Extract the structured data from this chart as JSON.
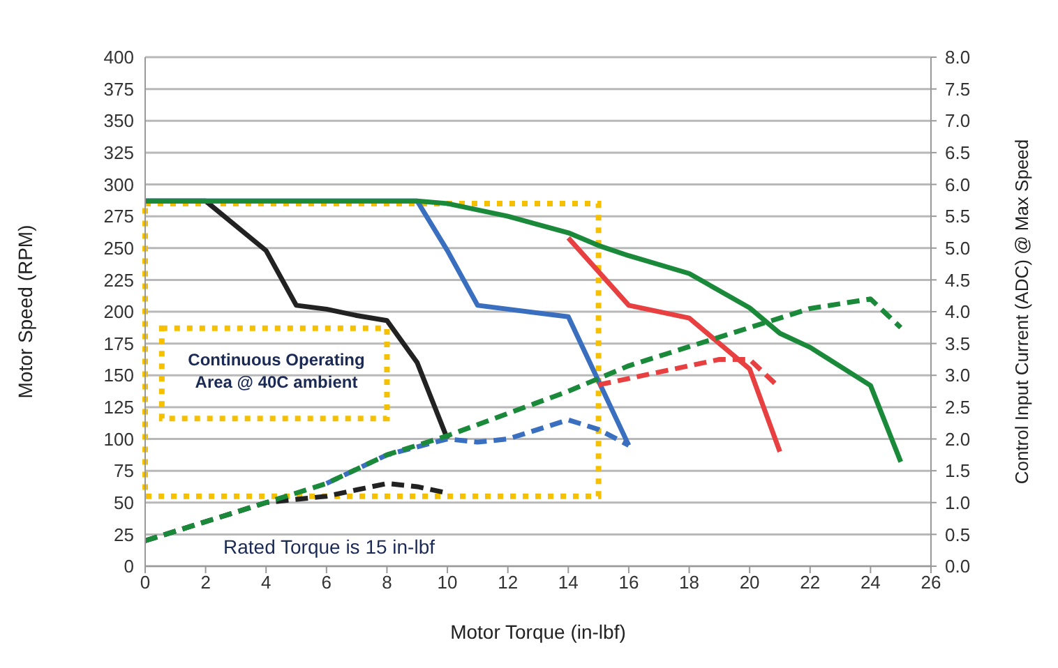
{
  "chart_data": {
    "type": "line",
    "xlabel": "Motor Torque (in-lbf)",
    "ylabel": "Motor Speed (RPM)",
    "y2label": "Control Input Current (ADC) @ Max Speed",
    "xlim": [
      0,
      26
    ],
    "xticks": [
      0,
      2,
      4,
      6,
      8,
      10,
      12,
      14,
      16,
      18,
      20,
      22,
      24,
      26
    ],
    "ylim": [
      0,
      400
    ],
    "yticks": [
      0,
      25,
      50,
      75,
      100,
      125,
      150,
      175,
      200,
      225,
      250,
      275,
      300,
      325,
      350,
      375,
      400
    ],
    "y2lim": [
      0,
      8
    ],
    "y2ticks": [
      {
        "value": 0,
        "label": "0.0"
      },
      0.5,
      {
        "value": 1,
        "label": "1.0"
      },
      1.5,
      {
        "value": 2,
        "label": "2.0"
      },
      2.5,
      {
        "value": 3,
        "label": "3.0"
      },
      3.5,
      {
        "value": 4,
        "label": "4.0"
      },
      4.5,
      {
        "value": 5,
        "label": "5.0"
      },
      5.5,
      {
        "value": 6,
        "label": "6.0"
      },
      6.5,
      {
        "value": 7,
        "label": "7.0"
      },
      7.5,
      {
        "value": 8,
        "label": "8.0"
      }
    ],
    "grid": "y",
    "legend": false,
    "marker": "none",
    "annotations": [
      "Continuous Operating Area @ 40C ambient",
      "Rated Torque is 15 in-lbf"
    ],
    "series": [
      {
        "color": "#222222",
        "line_style": "solid",
        "x": [
          0,
          2,
          4,
          5,
          6,
          7,
          8,
          9,
          10
        ],
        "values": [
          287,
          287,
          248,
          205,
          202,
          197,
          193,
          160,
          100
        ]
      },
      {
        "color": "#3a6fbf",
        "line_style": "solid",
        "x": [
          0,
          9,
          10,
          11,
          14,
          16
        ],
        "values": [
          287,
          287,
          248,
          205,
          196,
          95
        ]
      },
      {
        "color": "#e84040",
        "line_style": "solid",
        "x": [
          14,
          16,
          18,
          20,
          21
        ],
        "values": [
          258,
          205,
          195,
          155,
          90
        ]
      },
      {
        "color": "#1a8a3a",
        "line_style": "solid",
        "x": [
          0,
          9,
          10,
          12,
          14,
          15,
          16,
          18,
          20,
          21,
          22,
          24,
          25
        ],
        "values": [
          287,
          287,
          285,
          275,
          262,
          252,
          244,
          230,
          203,
          183,
          172,
          142,
          82
        ]
      },
      {
        "color": "#222222",
        "line_style": "dashed",
        "axis": "y2",
        "x": [
          0,
          2,
          4,
          6,
          8,
          9,
          10
        ],
        "values": [
          0.4,
          0.7,
          1.0,
          1.1,
          1.3,
          1.25,
          1.15
        ]
      },
      {
        "color": "#3a6fbf",
        "line_style": "dashed",
        "axis": "y2",
        "x": [
          6,
          8,
          10,
          11,
          12,
          14,
          15,
          16
        ],
        "values": [
          1.3,
          1.75,
          2.0,
          1.95,
          2.0,
          2.3,
          2.15,
          1.9
        ]
      },
      {
        "color": "#e84040",
        "line_style": "dashed",
        "axis": "y2",
        "x": [
          15,
          16,
          18,
          19,
          20,
          21
        ],
        "values": [
          2.85,
          2.95,
          3.15,
          3.25,
          3.25,
          2.8
        ]
      },
      {
        "color": "#1a8a3a",
        "line_style": "dashed",
        "axis": "y2",
        "x": [
          0,
          2,
          4,
          6,
          8,
          10,
          12,
          14,
          16,
          18,
          20,
          22,
          24,
          25
        ],
        "values": [
          0.4,
          0.7,
          1.0,
          1.3,
          1.75,
          2.05,
          2.4,
          2.75,
          3.15,
          3.45,
          3.75,
          4.05,
          4.2,
          3.75
        ]
      }
    ]
  }
}
